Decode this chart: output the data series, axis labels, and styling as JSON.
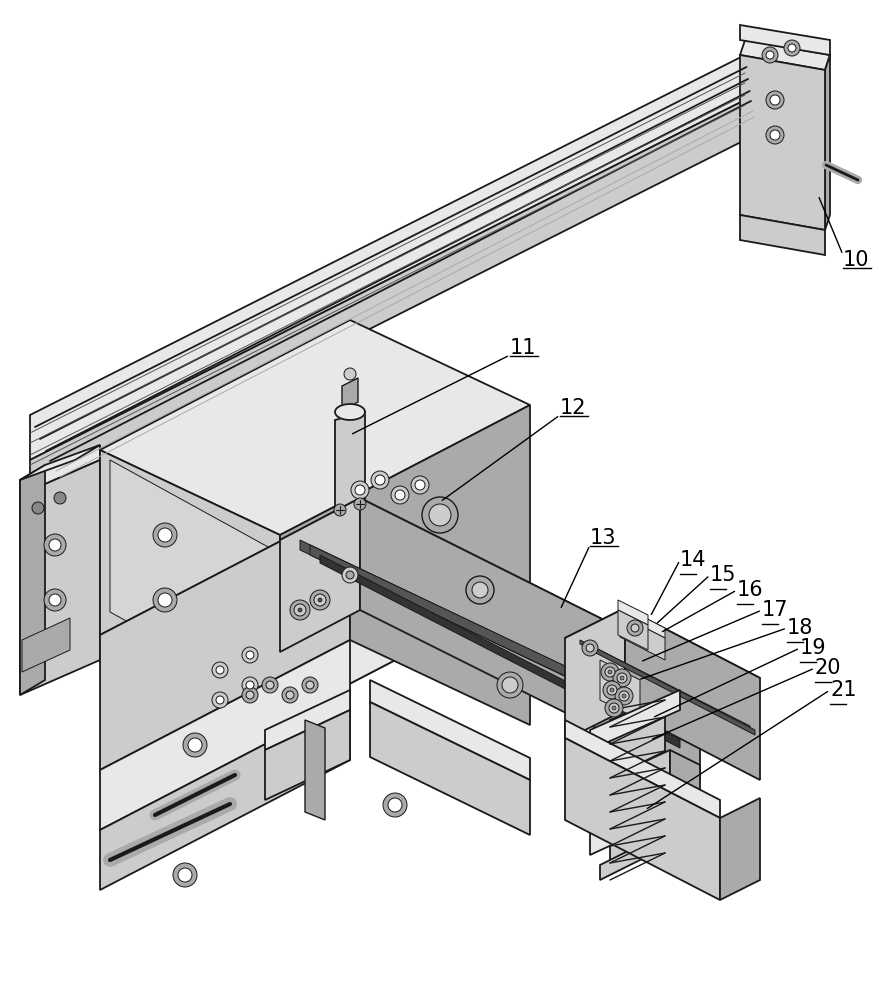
{
  "background_color": "#ffffff",
  "line_color": "#1a1a1a",
  "fig_width": 8.91,
  "fig_height": 10.0,
  "dpi": 100,
  "label_fontsize": 15,
  "gray_light": "#e8e8e8",
  "gray_mid": "#cccccc",
  "gray_dark": "#aaaaaa",
  "gray_darker": "#888888",
  "gray_deep": "#555555",
  "white": "#ffffff"
}
